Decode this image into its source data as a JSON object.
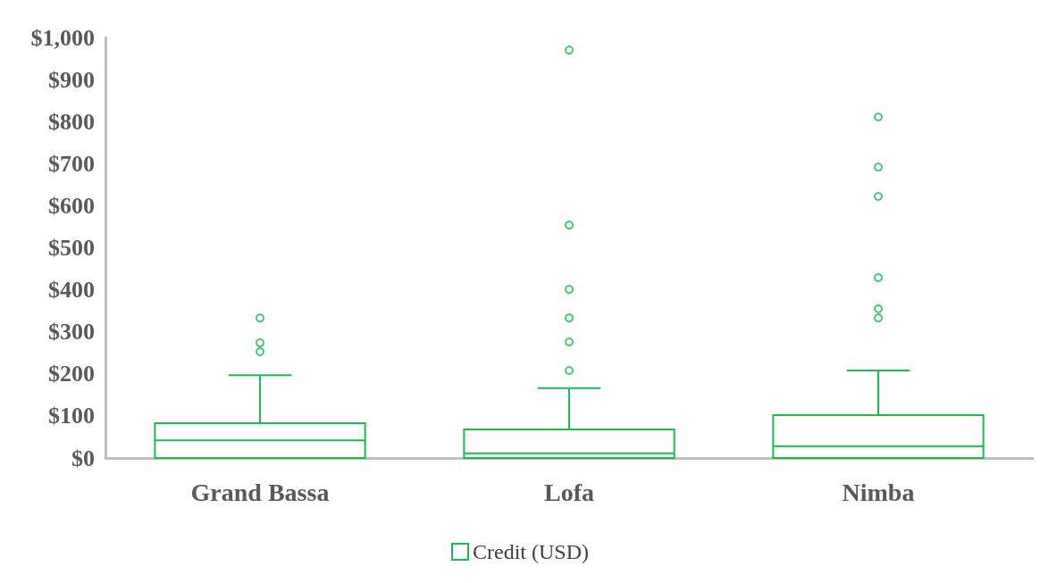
{
  "chart_data": {
    "type": "box",
    "categories": [
      "Grand Bassa",
      "Lofa",
      "Nimba"
    ],
    "series": [
      {
        "name": "Credit (USD)",
        "color": "#1db954",
        "boxes": [
          {
            "q1": 0,
            "median": 42,
            "q3": 83,
            "high": 197,
            "outliers": [
              253,
              274,
              333
            ]
          },
          {
            "q1": 0,
            "median": 11,
            "q3": 68,
            "high": 166,
            "outliers": [
              208,
              276,
              333,
              401,
              554,
              970
            ]
          },
          {
            "q1": 0,
            "median": 28,
            "q3": 102,
            "high": 208,
            "outliers": [
              333,
              355,
              429,
              622,
              692,
              811
            ]
          }
        ]
      }
    ],
    "ylim": [
      0,
      1000
    ],
    "yticks": [
      {
        "value": 0,
        "label": "$0"
      },
      {
        "value": 100,
        "label": "$100"
      },
      {
        "value": 200,
        "label": "$200"
      },
      {
        "value": 300,
        "label": "$300"
      },
      {
        "value": 400,
        "label": "$400"
      },
      {
        "value": 500,
        "label": "$500"
      },
      {
        "value": 600,
        "label": "$600"
      },
      {
        "value": 700,
        "label": "$700"
      },
      {
        "value": 800,
        "label": "$800"
      },
      {
        "value": 900,
        "label": "$900"
      },
      {
        "value": 1000,
        "label": "$1,000"
      }
    ],
    "legend": "bottom",
    "marker": "circle"
  }
}
